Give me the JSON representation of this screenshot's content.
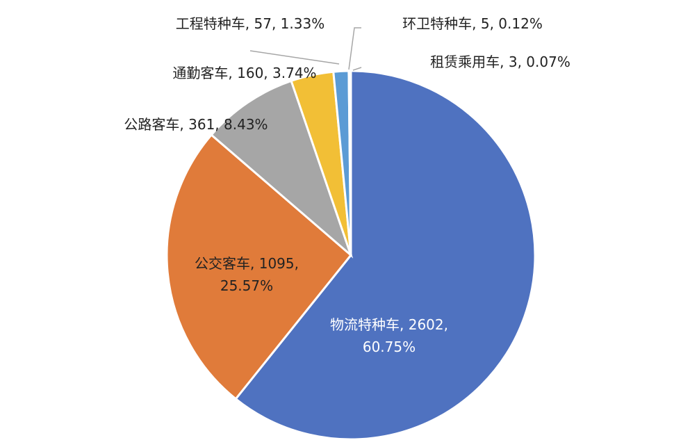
{
  "chart_data": {
    "type": "pie",
    "slices": [
      {
        "name": "物流特种车",
        "value": 2602,
        "percent": "60.75%",
        "label_line1": "物流特种车, 2602,",
        "label_line2": "60.75%",
        "color": "#4f72c0"
      },
      {
        "name": "公交客车",
        "value": 1095,
        "percent": "25.57%",
        "label_line1": "公交客车, 1095,",
        "label_line2": "25.57%",
        "color": "#e07b3a"
      },
      {
        "name": "公路客车",
        "value": 361,
        "percent": "8.43%",
        "label_line1": "公路客车, 361, 8.43%",
        "label_line2": "",
        "color": "#a6a6a6"
      },
      {
        "name": "通勤客车",
        "value": 160,
        "percent": "3.74%",
        "label_line1": "通勤客车, 160, 3.74%",
        "label_line2": "",
        "color": "#f2bf36"
      },
      {
        "name": "工程特种车",
        "value": 57,
        "percent": "1.33%",
        "label_line1": "工程特种车, 57, 1.33%",
        "label_line2": "",
        "color": "#5b9bd5"
      },
      {
        "name": "环卫特种车",
        "value": 5,
        "percent": "0.12%",
        "label_line1": "环卫特种车, 5, 0.12%",
        "label_line2": "",
        "color": "#2e4f8f"
      },
      {
        "name": "租赁乘用车",
        "value": 3,
        "percent": "0.07%",
        "label_line1": "租赁乘用车, 3, 0.07%",
        "label_line2": "",
        "color": "#7a4a1f"
      }
    ],
    "legend": "none",
    "start": "top",
    "direction": "clockwise"
  }
}
